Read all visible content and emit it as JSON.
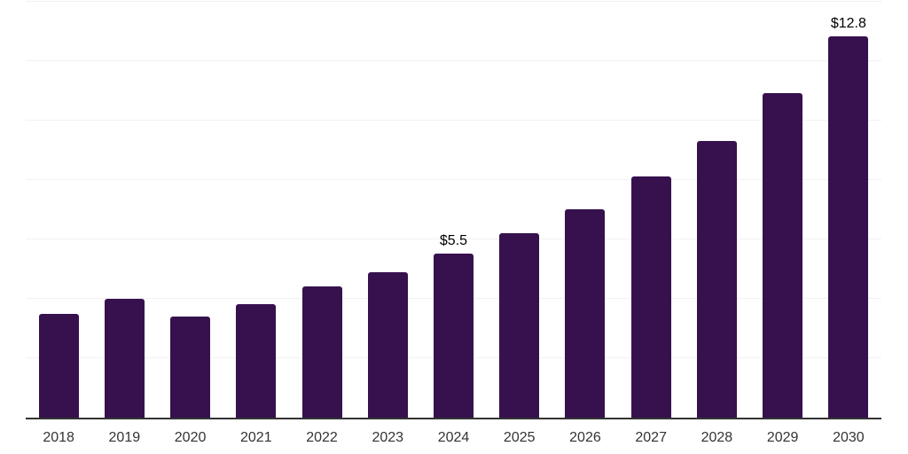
{
  "chart_data": {
    "type": "bar",
    "title": "",
    "xlabel": "",
    "ylabel": "",
    "categories": [
      "2018",
      "2019",
      "2020",
      "2021",
      "2022",
      "2023",
      "2024",
      "2025",
      "2026",
      "2027",
      "2028",
      "2029",
      "2030"
    ],
    "values": [
      3.5,
      4.0,
      3.4,
      3.8,
      4.4,
      4.9,
      5.5,
      6.2,
      7.0,
      8.1,
      9.3,
      10.9,
      12.8
    ],
    "data_labels": [
      "",
      "",
      "",
      "",
      "",
      "",
      "$5.5",
      "",
      "",
      "",
      "",
      "",
      "$12.8"
    ],
    "ylim": [
      0,
      14
    ],
    "grid_interval": 2,
    "grid_visible": true,
    "legend_position": "none",
    "colors": {
      "bar": "#36114E",
      "gridline": "#f1f1f1",
      "axis_line": "#333333",
      "tick_label": "#333333",
      "data_label": "#000000",
      "background": "#ffffff"
    }
  }
}
